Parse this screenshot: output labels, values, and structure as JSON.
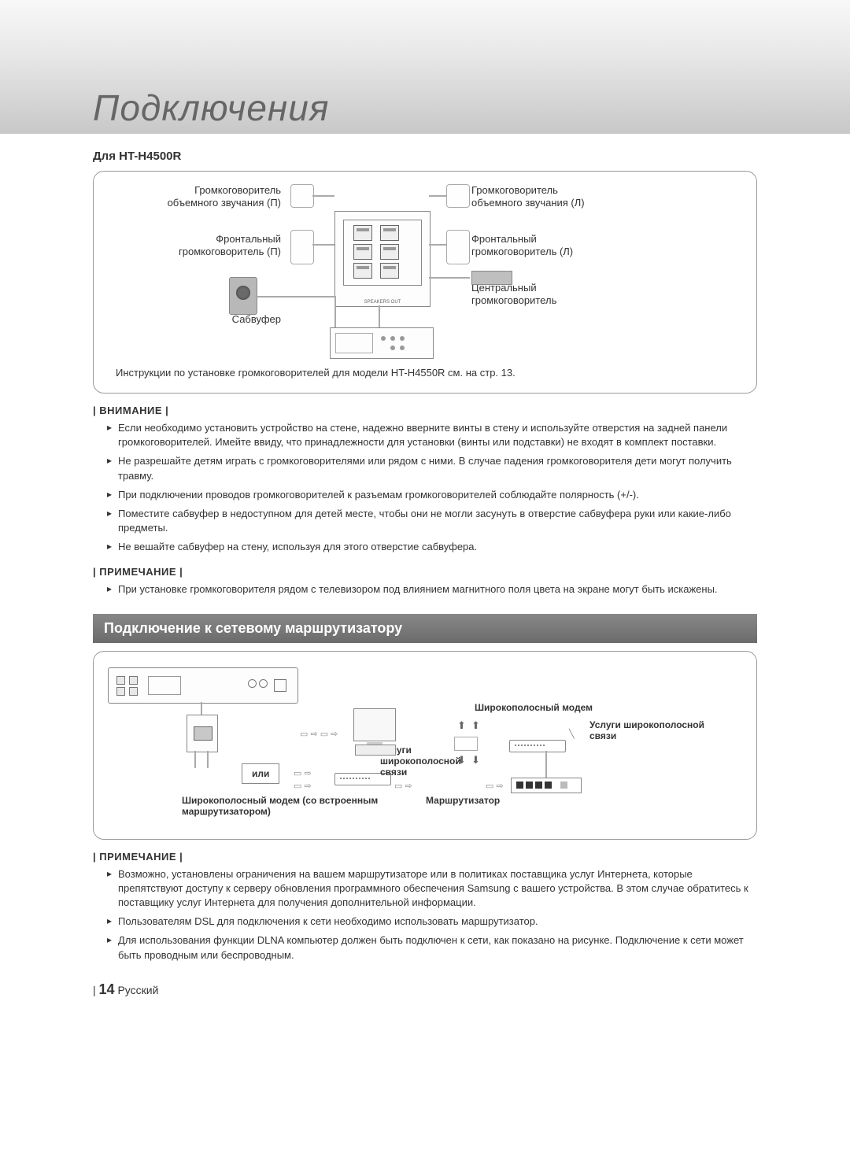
{
  "page": {
    "title": "Подключения",
    "subhead": "Для HT-H4500R",
    "page_number": "14",
    "lang_label": "Русский"
  },
  "diagram1": {
    "surround_r": "Громкоговоритель\nобъемного звучания (П)",
    "surround_l": "Громкоговоритель\nобъемного звучания (Л)",
    "front_r": "Фронтальный\nгромкоговоритель (П)",
    "front_l": "Фронтальный\nгромкоговоритель (Л)",
    "center": "Центральный\nгромкоговоритель",
    "subwoofer": "Сабвуфер",
    "instruction": "Инструкции по установке громкоговорителей для модели HT-H4550R см. на стр. 13."
  },
  "attention": {
    "header": "ВНИМАНИЕ",
    "items": [
      "Если необходимо установить устройство на стене, надежно вверните винты в стену и используйте отверстия на задней панели громкоговорителей. Имейте ввиду, что принадлежности для установки (винты или подставки) не входят в комплект поставки.",
      "Не разрешайте детям играть с громкоговорителями или рядом с ними. В случае падения громкоговорителя дети могут получить травму.",
      "При подключении проводов громкоговорителей к разъемам громкоговорителей соблюдайте полярность (+/-).",
      "Поместите сабвуфер в недоступном для детей месте, чтобы они не могли засунуть в отверстие сабвуфера руки или какие-либо предметы.",
      "Не вешайте сабвуфер на стену, используя для этого отверстие сабвуфера."
    ]
  },
  "note1": {
    "header": "ПРИМЕЧАНИЕ",
    "items": [
      "При установке громкоговорителя рядом с телевизором под влиянием магнитного поля цвета на экране могут быть искажены."
    ]
  },
  "section2": {
    "title": "Подключение к сетевому маршрутизатору"
  },
  "diagram2": {
    "or": "или",
    "modem_router": "Широкополосный модем (со встроенным маршрутизатором)",
    "broadband1": "Услуги широкополосной связи",
    "broadband_modem": "Широкополосный модем",
    "broadband2": "Услуги широкополосной связи",
    "router": "Маршрутизатор"
  },
  "note2": {
    "header": "ПРИМЕЧАНИЕ",
    "items": [
      "Возможно, установлены ограничения на вашем маршрутизаторе или в политиках поставщика услуг Интернета, которые препятствуют доступу к серверу обновления программного обеспечения Samsung с вашего устройства. В этом случае обратитесь к поставщику услуг Интернета для получения дополнительной информации.",
      "Пользователям DSL для подключения к сети необходимо использовать маршрутизатор.",
      "Для использования функции DLNA компьютер должен быть подключен к сети, как показано на рисунке. Подключение к сети может быть проводным или беспроводным."
    ]
  },
  "colors": {
    "header_text": "#666666",
    "border": "#999999",
    "section_bar_bg": "#777777",
    "section_bar_text": "#ffffff"
  }
}
